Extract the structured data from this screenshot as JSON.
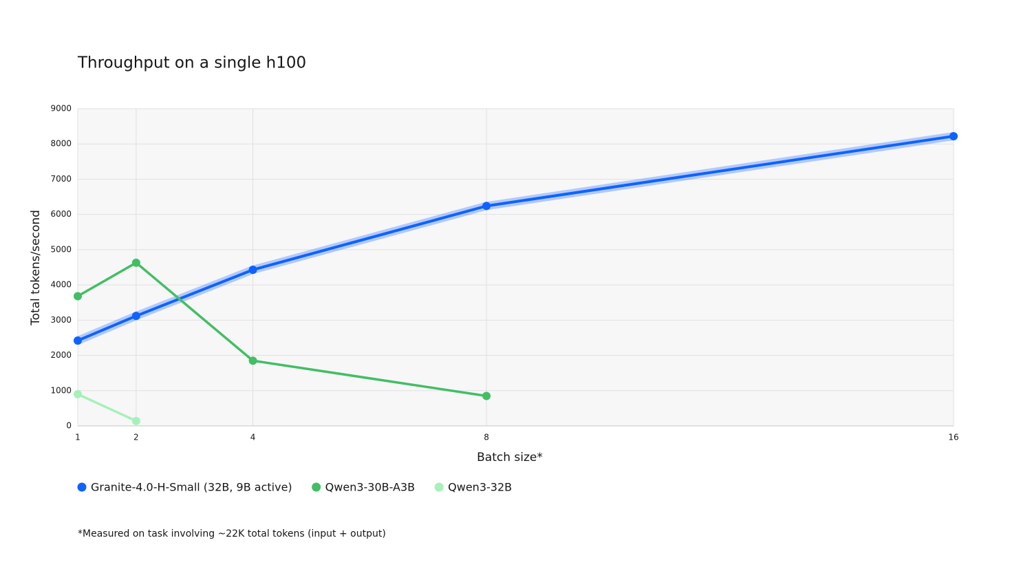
{
  "chart_data": {
    "type": "line",
    "title": "Throughput on a single h100",
    "x_label": "Batch size*",
    "y_label": "Total tokens/second",
    "footnote": "*Measured on task involving ~22K total tokens (input + output)",
    "x": [
      1,
      2,
      4,
      8,
      16
    ],
    "xlim": [
      1,
      16
    ],
    "xticks": [
      1,
      2,
      4,
      8,
      16
    ],
    "ylim": [
      0,
      9000
    ],
    "yticks": [
      0,
      1000,
      2000,
      3000,
      4000,
      5000,
      6000,
      7000,
      8000,
      9000
    ],
    "grid": true,
    "series": [
      {
        "name": "Granite-4.0-H-Small (32B, 9B active)",
        "color": "#0f62fe",
        "values": [
          2420,
          3120,
          4430,
          6240,
          8220
        ]
      },
      {
        "name": "Qwen3-30B-A3B",
        "color": "#42be65",
        "values": [
          3680,
          4630,
          1850,
          850,
          null
        ]
      },
      {
        "name": "Qwen3-32B",
        "color": "#a7f0ba",
        "values": [
          900,
          140,
          null,
          null,
          null
        ]
      }
    ]
  }
}
